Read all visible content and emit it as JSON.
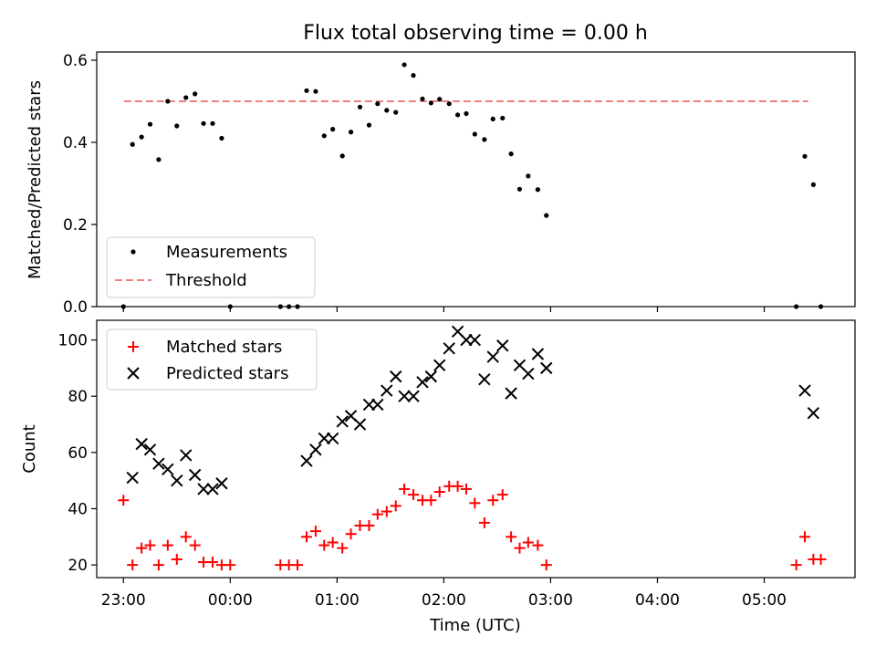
{
  "chart_data": [
    {
      "type": "scatter",
      "title": "Flux total observing time = 0.00 h",
      "xlabel": "",
      "ylabel": "Matched/Predicted stars",
      "xlim_hours": [
        -1.25,
        5.85
      ],
      "ylim": [
        0,
        0.62
      ],
      "yticks": [
        0,
        0.2,
        0.4,
        0.6
      ],
      "ytick_labels": [
        "0.0",
        "0.2",
        "0.4",
        "0.6"
      ],
      "legend": {
        "location": "lower-left",
        "entries": [
          "Measurements",
          "Threshold"
        ]
      },
      "threshold": {
        "name": "Threshold",
        "value": 0.5,
        "x_start": -0.995,
        "x_end": 5.41,
        "color": "#f08080"
      },
      "series": [
        {
          "name": "Measurements",
          "marker": "dot",
          "color": "#000000",
          "x": [
            -1.0,
            -0.915,
            -0.83,
            -0.75,
            -0.67,
            -0.585,
            -0.5,
            -0.415,
            -0.33,
            -0.25,
            -0.165,
            -0.08,
            -0.0,
            0.47,
            0.55,
            0.63,
            0.715,
            0.8,
            0.88,
            0.96,
            1.05,
            1.13,
            1.215,
            1.3,
            1.38,
            1.465,
            1.55,
            1.63,
            1.715,
            1.8,
            1.88,
            1.96,
            2.05,
            2.13,
            2.21,
            2.29,
            2.38,
            2.46,
            2.55,
            2.63,
            2.71,
            2.79,
            2.88,
            2.96,
            5.3,
            5.38,
            5.46,
            5.53
          ],
          "y": [
            0.0,
            0.395,
            0.413,
            0.444,
            0.358,
            0.5,
            0.44,
            0.509,
            0.518,
            0.446,
            0.446,
            0.41,
            0.0,
            0.0,
            0.0,
            0.0,
            0.526,
            0.524,
            0.416,
            0.432,
            0.367,
            0.425,
            0.486,
            0.442,
            0.494,
            0.478,
            0.473,
            0.589,
            0.563,
            0.506,
            0.496,
            0.505,
            0.494,
            0.467,
            0.47,
            0.42,
            0.407,
            0.457,
            0.459,
            0.372,
            0.286,
            0.318,
            0.285,
            0.222,
            0.0,
            0.366,
            0.297,
            0.0
          ]
        }
      ]
    },
    {
      "type": "scatter",
      "title": "",
      "xlabel": "Time (UTC)",
      "ylabel": "Count",
      "xlim_hours": [
        -1.25,
        5.85
      ],
      "ylim": [
        15.5,
        107
      ],
      "yticks": [
        20,
        40,
        60,
        80,
        100
      ],
      "ytick_labels": [
        "20",
        "40",
        "60",
        "80",
        "100"
      ],
      "xticks_hours": [
        -1,
        0,
        1,
        2,
        3,
        4,
        5
      ],
      "xtick_labels": [
        "23:00",
        "00:00",
        "01:00",
        "02:00",
        "03:00",
        "04:00",
        "05:00"
      ],
      "legend": {
        "location": "top-left",
        "entries": [
          "Matched stars",
          "Predicted stars"
        ]
      },
      "series": [
        {
          "name": "Matched stars",
          "marker": "plus",
          "color": "#ff0000",
          "x": [
            -1.0,
            -0.915,
            -0.83,
            -0.75,
            -0.67,
            -0.585,
            -0.5,
            -0.415,
            -0.33,
            -0.25,
            -0.165,
            -0.08,
            -0.0,
            0.47,
            0.55,
            0.63,
            0.715,
            0.8,
            0.88,
            0.96,
            1.05,
            1.13,
            1.215,
            1.3,
            1.38,
            1.465,
            1.55,
            1.63,
            1.715,
            1.8,
            1.88,
            1.96,
            2.05,
            2.13,
            2.21,
            2.29,
            2.38,
            2.46,
            2.55,
            2.63,
            2.71,
            2.79,
            2.88,
            2.96,
            5.3,
            5.38,
            5.46,
            5.53
          ],
          "y": [
            43,
            20,
            26,
            27,
            20,
            27,
            22,
            30,
            27,
            21,
            21,
            20,
            20,
            20,
            20,
            20,
            30,
            32,
            27,
            28,
            26,
            31,
            34,
            34,
            38,
            39,
            41,
            47,
            45,
            43,
            43,
            46,
            48,
            48,
            47,
            42,
            35,
            43,
            45,
            30,
            26,
            28,
            27,
            20,
            20,
            30,
            22,
            22
          ]
        },
        {
          "name": "Predicted stars",
          "marker": "x",
          "color": "#000000",
          "x": [
            -0.915,
            -0.83,
            -0.75,
            -0.67,
            -0.585,
            -0.5,
            -0.415,
            -0.33,
            -0.25,
            -0.165,
            -0.08,
            0.715,
            0.8,
            0.88,
            0.96,
            1.05,
            1.13,
            1.215,
            1.3,
            1.38,
            1.465,
            1.55,
            1.63,
            1.715,
            1.8,
            1.88,
            1.96,
            2.05,
            2.13,
            2.21,
            2.29,
            2.38,
            2.46,
            2.55,
            2.63,
            2.71,
            2.79,
            2.88,
            2.96,
            5.38,
            5.46
          ],
          "y": [
            51,
            63,
            61,
            56,
            54,
            50,
            59,
            52,
            47,
            47,
            49,
            57,
            61,
            65,
            65,
            71,
            73,
            70,
            77,
            77,
            82,
            87,
            80,
            80,
            85,
            87,
            91,
            97,
            103,
            100,
            100,
            86,
            94,
            98,
            81,
            91,
            88,
            95,
            90,
            82,
            74
          ]
        }
      ]
    }
  ]
}
